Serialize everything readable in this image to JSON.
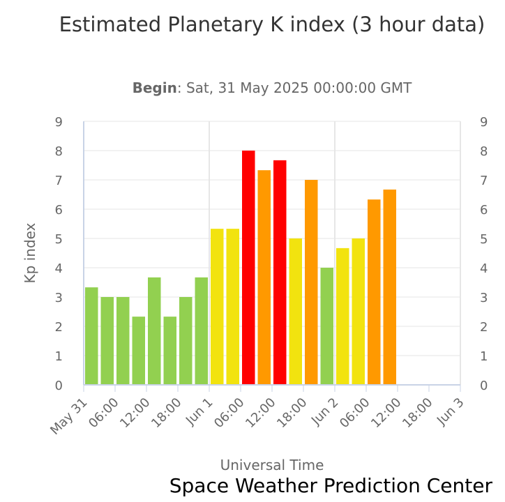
{
  "chart_data": {
    "type": "bar",
    "title": "Estimated Planetary K index (3 hour data)",
    "subtitle_label": "Begin",
    "subtitle_value": "Sat, 31 May 2025 00:00:00 GMT",
    "xlabel": "Universal Time",
    "ylabel": "Kp index",
    "ylim": [
      0,
      9
    ],
    "yticks": [
      "0",
      "1",
      "2",
      "3",
      "4",
      "5",
      "6",
      "7",
      "8",
      "9"
    ],
    "xticks": [
      "May 31",
      "06:00",
      "12:00",
      "18:00",
      "Jun 1",
      "06:00",
      "12:00",
      "18:00",
      "Jun 2",
      "06:00",
      "12:00",
      "18:00",
      "Jun 3"
    ],
    "x_range_hours": [
      0,
      72
    ],
    "grid": true,
    "colors": {
      "green": "#92d050",
      "yellow": "#f2e30f",
      "orange": "#ff9900",
      "red": "#ff0000"
    },
    "values": [
      3.33,
      3.0,
      3.0,
      2.33,
      3.67,
      2.33,
      3.0,
      3.67,
      5.33,
      5.33,
      8.0,
      7.33,
      7.67,
      5.0,
      7.0,
      4.0,
      4.67,
      5.0,
      6.33,
      6.67
    ],
    "bar_colors": [
      "green",
      "green",
      "green",
      "green",
      "green",
      "green",
      "green",
      "green",
      "yellow",
      "yellow",
      "red",
      "orange",
      "red",
      "yellow",
      "orange",
      "green",
      "yellow",
      "yellow",
      "orange",
      "orange"
    ]
  },
  "credit": "Space Weather Prediction Center"
}
